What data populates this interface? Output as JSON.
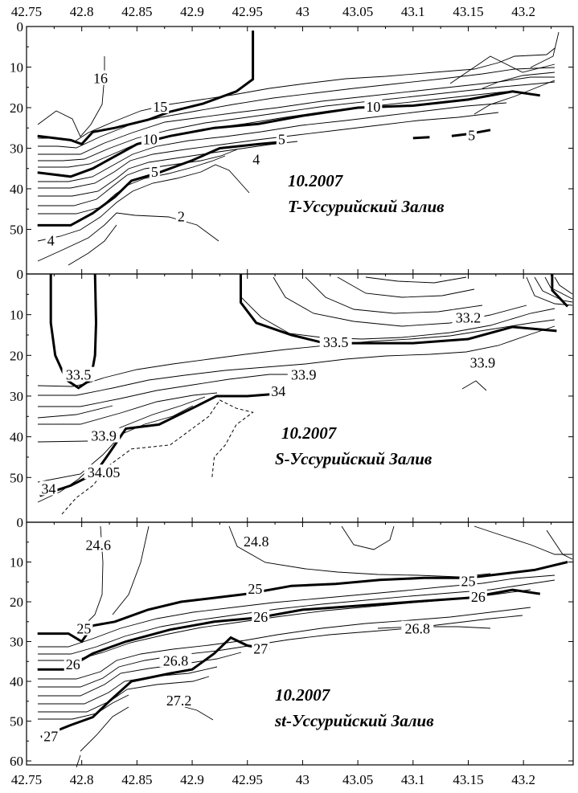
{
  "chart_data": [
    {
      "type": "contour",
      "id": "T",
      "title_lines": [
        "10.2007",
        "T-Уссурийский Залив"
      ],
      "x_ticks": [
        "42.75",
        "42.8",
        "42.85",
        "42.9",
        "42.95",
        "43",
        "43.05",
        "43.1",
        "43.15",
        "43.2"
      ],
      "y_ticks": [
        "0",
        "10",
        "20",
        "30",
        "40",
        "50"
      ],
      "xlim": [
        42.75,
        43.245
      ],
      "ylim": [
        0,
        61
      ],
      "thick_levels": [
        {
          "value": 15,
          "points": [
            [
              42.76,
              27
            ],
            [
              42.79,
              28
            ],
            [
              42.8,
              29
            ],
            [
              42.81,
              26
            ],
            [
              42.83,
              25
            ],
            [
              42.86,
              23
            ],
            [
              42.88,
              21
            ],
            [
              42.91,
              19
            ],
            [
              42.94,
              16
            ],
            [
              42.955,
              13
            ],
            [
              42.955,
              8
            ],
            [
              42.955,
              1
            ]
          ]
        },
        {
          "value": 10,
          "points": [
            [
              42.76,
              36
            ],
            [
              42.79,
              37
            ],
            [
              42.81,
              35
            ],
            [
              42.83,
              32
            ],
            [
              42.85,
              29
            ],
            [
              42.88,
              27
            ],
            [
              42.92,
              25
            ],
            [
              42.96,
              24
            ],
            [
              43.0,
              22
            ],
            [
              43.05,
              20
            ],
            [
              43.1,
              19.5
            ],
            [
              43.15,
              18
            ],
            [
              43.19,
              16
            ],
            [
              43.215,
              17
            ]
          ]
        },
        {
          "value": 5,
          "points": [
            [
              42.76,
              49
            ],
            [
              42.79,
              49
            ],
            [
              42.81,
              46
            ],
            [
              42.83,
              42
            ],
            [
              42.845,
              38
            ],
            [
              42.87,
              36
            ],
            [
              42.9,
              33
            ],
            [
              42.925,
              30
            ],
            [
              42.96,
              29
            ],
            [
              42.98,
              28.5
            ]
          ]
        },
        {
          "value": 5,
          "points": [
            [
              43.135,
              27
            ],
            [
              43.15,
              26.5
            ],
            [
              43.17,
              25.5
            ]
          ]
        },
        {
          "value": 5,
          "points": [
            [
              43.1,
              27.5
            ],
            [
              43.115,
              27.3
            ]
          ]
        }
      ],
      "labels": [
        {
          "text": "16",
          "x": 42.817,
          "y": 13
        },
        {
          "text": "15",
          "x": 42.871,
          "y": 20
        },
        {
          "text": "10",
          "x": 42.862,
          "y": 28
        },
        {
          "text": "10",
          "x": 43.064,
          "y": 20
        },
        {
          "text": "5",
          "x": 42.981,
          "y": 28
        },
        {
          "text": "5",
          "x": 42.866,
          "y": 36
        },
        {
          "text": "5",
          "x": 43.153,
          "y": 27
        },
        {
          "text": "4",
          "x": 42.958,
          "y": 33
        },
        {
          "text": "4",
          "x": 42.772,
          "y": 53
        },
        {
          "text": "2",
          "x": 42.89,
          "y": 47
        }
      ]
    },
    {
      "type": "contour",
      "id": "S",
      "title_lines": [
        "10.2007",
        "S-Уссурийский Залив"
      ],
      "x_ticks": [
        "42.75",
        "42.8",
        "42.85",
        "42.9",
        "42.95",
        "43",
        "43.05",
        "43.1",
        "43.15",
        "43.2"
      ],
      "y_ticks": [
        "0",
        "10",
        "20",
        "30",
        "40",
        "50"
      ],
      "xlim": [
        42.75,
        43.245
      ],
      "ylim": [
        0,
        61
      ],
      "thick_levels": [
        {
          "value": 33.5,
          "points": [
            [
              42.772,
              0
            ],
            [
              42.772,
              12
            ],
            [
              42.776,
              20
            ],
            [
              42.786,
              26
            ],
            [
              42.797,
              28
            ],
            [
              42.808,
              26
            ],
            [
              42.812,
              20
            ],
            [
              42.813,
              12
            ],
            [
              42.812,
              0
            ]
          ]
        },
        {
          "value": 33.5,
          "points": [
            [
              42.944,
              0
            ],
            [
              42.944,
              7
            ],
            [
              42.958,
              12
            ],
            [
              42.99,
              15
            ],
            [
              43.02,
              17
            ],
            [
              43.06,
              17
            ],
            [
              43.1,
              17
            ],
            [
              43.15,
              16
            ],
            [
              43.19,
              13
            ],
            [
              43.23,
              14
            ]
          ]
        },
        {
          "value": 34,
          "points": [
            [
              42.762,
              54.5
            ],
            [
              42.79,
              52
            ],
            [
              42.812,
              49
            ],
            [
              42.825,
              44
            ],
            [
              42.84,
              38
            ],
            [
              42.87,
              37
            ],
            [
              42.9,
              33
            ],
            [
              42.922,
              30
            ],
            [
              42.95,
              30
            ],
            [
              42.975,
              29.5
            ]
          ]
        },
        {
          "value": 33.2,
          "points": [
            [
              43.226,
              0
            ],
            [
              43.226,
              4
            ],
            [
              43.24,
              8
            ]
          ]
        }
      ],
      "dashed_levels": [
        {
          "value": 34.05,
          "points": [
            [
              42.782,
              59
            ],
            [
              42.795,
              55
            ],
            [
              42.81,
              52
            ],
            [
              42.825,
              47
            ],
            [
              42.845,
              43
            ],
            [
              42.88,
              42
            ],
            [
              42.9,
              38
            ],
            [
              42.915,
              35
            ],
            [
              42.925,
              31
            ],
            [
              42.94,
              33
            ],
            [
              42.955,
              34
            ],
            [
              42.94,
              37
            ],
            [
              42.93,
              42
            ],
            [
              42.92,
              45
            ],
            [
              42.918,
              50
            ]
          ]
        }
      ],
      "labels": [
        {
          "text": "33.5",
          "x": 42.797,
          "y": 25
        },
        {
          "text": "33.5",
          "x": 43.03,
          "y": 17
        },
        {
          "text": "33.2",
          "x": 43.15,
          "y": 11
        },
        {
          "text": "33.9",
          "x": 43.001,
          "y": 25
        },
        {
          "text": "33.9",
          "x": 43.163,
          "y": 22
        },
        {
          "text": "33.9",
          "x": 42.82,
          "y": 40
        },
        {
          "text": "34",
          "x": 42.978,
          "y": 29
        },
        {
          "text": "34",
          "x": 42.77,
          "y": 53
        },
        {
          "text": "34.05",
          "x": 42.82,
          "y": 49
        }
      ]
    },
    {
      "type": "contour",
      "id": "st",
      "title_lines": [
        "10.2007",
        "st-Уссурийский Залив"
      ],
      "x_ticks": [
        "42.75",
        "42.8",
        "42.85",
        "42.9",
        "42.95",
        "43",
        "43.05",
        "43.1",
        "43.15",
        "43.2"
      ],
      "y_ticks": [
        "0",
        "10",
        "20",
        "30",
        "40",
        "50",
        "60"
      ],
      "xlim": [
        42.75,
        43.245
      ],
      "ylim": [
        0,
        61
      ],
      "thick_levels": [
        {
          "value": 25,
          "points": [
            [
              42.76,
              28
            ],
            [
              42.788,
              28
            ],
            [
              42.8,
              30
            ],
            [
              42.81,
              26
            ],
            [
              42.83,
              25
            ],
            [
              42.86,
              22
            ],
            [
              42.89,
              20
            ],
            [
              42.92,
              19
            ],
            [
              42.95,
              18
            ],
            [
              42.99,
              16
            ],
            [
              43.03,
              15.5
            ],
            [
              43.07,
              14.5
            ],
            [
              43.11,
              14
            ],
            [
              43.15,
              14
            ],
            [
              43.18,
              13
            ],
            [
              43.21,
              12
            ],
            [
              43.24,
              10
            ]
          ]
        },
        {
          "value": 26,
          "points": [
            [
              42.76,
              37
            ],
            [
              42.785,
              37
            ],
            [
              42.81,
              33
            ],
            [
              42.84,
              30
            ],
            [
              42.88,
              27
            ],
            [
              42.92,
              25
            ],
            [
              42.96,
              24
            ],
            [
              43.0,
              22
            ],
            [
              43.05,
              21
            ],
            [
              43.1,
              20
            ],
            [
              43.15,
              19
            ],
            [
              43.19,
              17
            ],
            [
              43.215,
              18
            ]
          ]
        },
        {
          "value": 27,
          "points": [
            [
              42.763,
              54
            ],
            [
              42.79,
              51
            ],
            [
              42.81,
              49
            ],
            [
              42.825,
              45
            ],
            [
              42.845,
              40
            ],
            [
              42.88,
              38
            ],
            [
              42.9,
              37
            ],
            [
              42.92,
              33
            ],
            [
              42.935,
              29
            ],
            [
              42.95,
              31
            ],
            [
              42.97,
              32
            ]
          ]
        }
      ],
      "labels": [
        {
          "text": "24.6",
          "x": 42.815,
          "y": 6
        },
        {
          "text": "24.8",
          "x": 42.958,
          "y": 5
        },
        {
          "text": "25",
          "x": 42.957,
          "y": 17
        },
        {
          "text": "25",
          "x": 42.802,
          "y": 27
        },
        {
          "text": "25",
          "x": 43.15,
          "y": 15
        },
        {
          "text": "26",
          "x": 42.962,
          "y": 24
        },
        {
          "text": "26",
          "x": 42.792,
          "y": 36
        },
        {
          "text": "26",
          "x": 43.159,
          "y": 19
        },
        {
          "text": "26.8",
          "x": 42.885,
          "y": 35
        },
        {
          "text": "26.8",
          "x": 43.104,
          "y": 27
        },
        {
          "text": "27",
          "x": 42.962,
          "y": 32
        },
        {
          "text": "27",
          "x": 42.772,
          "y": 54
        },
        {
          "text": "27.2",
          "x": 42.888,
          "y": 45
        }
      ]
    }
  ]
}
